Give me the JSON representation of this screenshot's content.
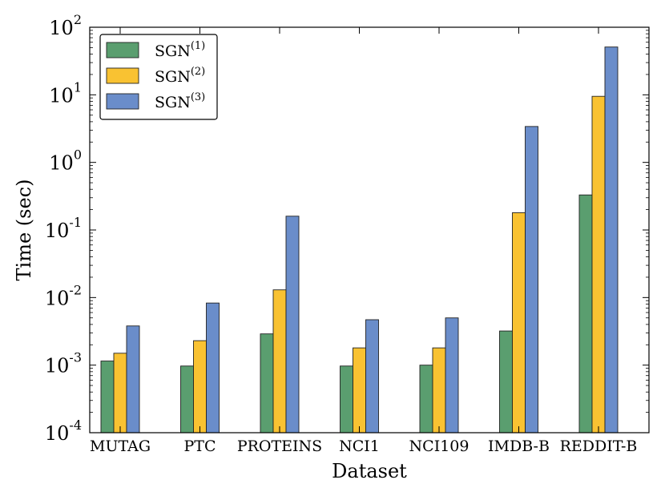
{
  "chart_data": {
    "type": "bar",
    "title": "",
    "xlabel": "Dataset",
    "ylabel": "Time  (sec)",
    "yscale": "log",
    "ylim": [
      0.0001,
      100
    ],
    "yticks": [
      {
        "value": 0.0001,
        "base": "10",
        "exp": "-4"
      },
      {
        "value": 0.001,
        "base": "10",
        "exp": "-3"
      },
      {
        "value": 0.01,
        "base": "10",
        "exp": "-2"
      },
      {
        "value": 0.1,
        "base": "10",
        "exp": "-1"
      },
      {
        "value": 1,
        "base": "10",
        "exp": "0"
      },
      {
        "value": 10,
        "base": "10",
        "exp": "1"
      },
      {
        "value": 100,
        "base": "10",
        "exp": "2"
      }
    ],
    "categories": [
      "MUTAG",
      "PTC",
      "PROTEINS",
      "NCI1",
      "NCI109",
      "IMDB-B",
      "REDDIT-B"
    ],
    "series": [
      {
        "name": "SGN",
        "sup": "(1)",
        "color": "#5a9e6f",
        "values": [
          0.00115,
          0.00097,
          0.0029,
          0.00097,
          0.001,
          0.0032,
          0.33
        ]
      },
      {
        "name": "SGN",
        "sup": "(2)",
        "color": "#f9c232",
        "values": [
          0.0015,
          0.0023,
          0.013,
          0.0018,
          0.0018,
          0.18,
          9.5
        ]
      },
      {
        "name": "SGN",
        "sup": "(3)",
        "color": "#6a8dca",
        "values": [
          0.0038,
          0.0083,
          0.16,
          0.0047,
          0.005,
          3.4,
          51
        ]
      }
    ],
    "legend_position": "top-left"
  }
}
